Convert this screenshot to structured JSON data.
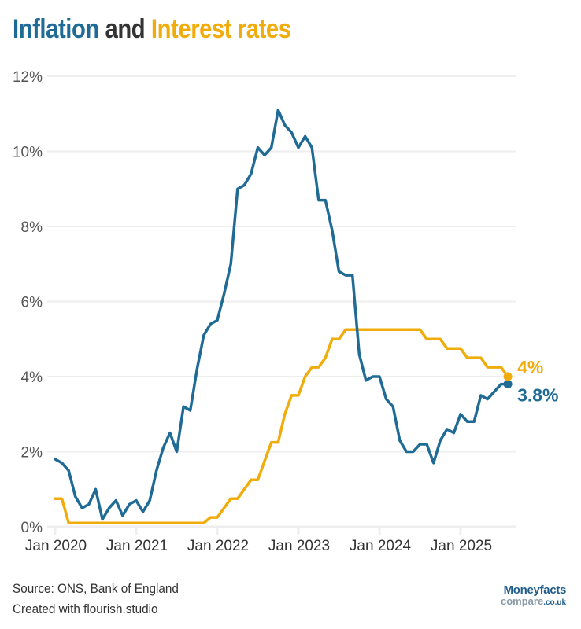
{
  "title": {
    "part1": "Inflation",
    "part2": "and",
    "part3": "Interest rates"
  },
  "footer": {
    "source": "Source: ONS, Bank of England",
    "credit": "Created with flourish.studio"
  },
  "logo": {
    "line1": "Moneyfacts",
    "line2": "compare",
    "line2_suffix": ".co.uk"
  },
  "colors": {
    "inflation": "#1f6b96",
    "interest": "#f0ac0a",
    "grid": "#eeeeee"
  },
  "chart_data": {
    "type": "line",
    "title": "Inflation and Interest rates",
    "xlabel": "",
    "ylabel": "",
    "ylim": [
      0,
      12
    ],
    "grid": true,
    "y_ticks": [
      0,
      2,
      4,
      6,
      8,
      10,
      12
    ],
    "y_tick_labels": [
      "0%",
      "2%",
      "4%",
      "6%",
      "8%",
      "10%",
      "12%"
    ],
    "x_start": "Jan 2020",
    "x_frequency": "monthly",
    "x_tick_indices": [
      0,
      12,
      24,
      36,
      48,
      60
    ],
    "x_tick_labels": [
      "Jan 2020",
      "Jan 2021",
      "Jan 2022",
      "Jan 2023",
      "Jan 2024",
      "Jan 2025"
    ],
    "series": [
      {
        "name": "Inflation",
        "color": "#1f6b96",
        "end_label": "3.8%",
        "values": [
          1.8,
          1.7,
          1.5,
          0.8,
          0.5,
          0.6,
          1.0,
          0.2,
          0.5,
          0.7,
          0.3,
          0.6,
          0.7,
          0.4,
          0.7,
          1.5,
          2.1,
          2.5,
          2.0,
          3.2,
          3.1,
          4.2,
          5.1,
          5.4,
          5.5,
          6.2,
          7.0,
          9.0,
          9.1,
          9.4,
          10.1,
          9.9,
          10.1,
          11.1,
          10.7,
          10.5,
          10.1,
          10.4,
          10.1,
          8.7,
          8.7,
          7.9,
          6.8,
          6.7,
          6.7,
          4.6,
          3.9,
          4.0,
          4.0,
          3.4,
          3.2,
          2.3,
          2.0,
          2.0,
          2.2,
          2.2,
          1.7,
          2.3,
          2.6,
          2.5,
          3.0,
          2.8,
          2.8,
          3.5,
          3.4,
          3.6,
          3.8,
          3.8
        ]
      },
      {
        "name": "Interest rates",
        "color": "#f0ac0a",
        "end_label": "4%",
        "values": [
          0.75,
          0.75,
          0.1,
          0.1,
          0.1,
          0.1,
          0.1,
          0.1,
          0.1,
          0.1,
          0.1,
          0.1,
          0.1,
          0.1,
          0.1,
          0.1,
          0.1,
          0.1,
          0.1,
          0.1,
          0.1,
          0.1,
          0.1,
          0.25,
          0.25,
          0.5,
          0.75,
          0.75,
          1.0,
          1.25,
          1.25,
          1.75,
          2.25,
          2.25,
          3.0,
          3.5,
          3.5,
          4.0,
          4.25,
          4.25,
          4.5,
          5.0,
          5.0,
          5.25,
          5.25,
          5.25,
          5.25,
          5.25,
          5.25,
          5.25,
          5.25,
          5.25,
          5.25,
          5.25,
          5.25,
          5.0,
          5.0,
          5.0,
          4.75,
          4.75,
          4.75,
          4.5,
          4.5,
          4.5,
          4.25,
          4.25,
          4.25,
          4.0
        ]
      }
    ]
  }
}
